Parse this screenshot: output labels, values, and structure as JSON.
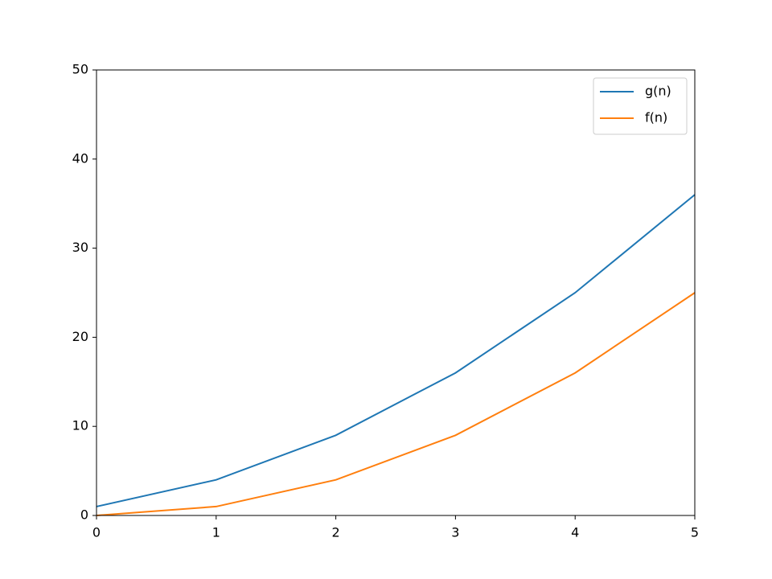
{
  "chart_data": {
    "type": "line",
    "x": [
      0,
      1,
      2,
      3,
      4,
      5
    ],
    "series": [
      {
        "name": "g(n)",
        "color": "#1f77b4",
        "values": [
          1,
          4,
          9,
          16,
          25,
          36
        ]
      },
      {
        "name": "f(n)",
        "color": "#ff7f0e",
        "values": [
          0,
          1,
          4,
          9,
          16,
          25
        ]
      }
    ],
    "xlim": [
      0,
      5
    ],
    "xticks": [
      0,
      1,
      2,
      3,
      4,
      5
    ],
    "ylim": [
      0,
      50
    ],
    "yticks": [
      0,
      10,
      20,
      30,
      40,
      50
    ],
    "grid": false,
    "legend": "upper right"
  }
}
